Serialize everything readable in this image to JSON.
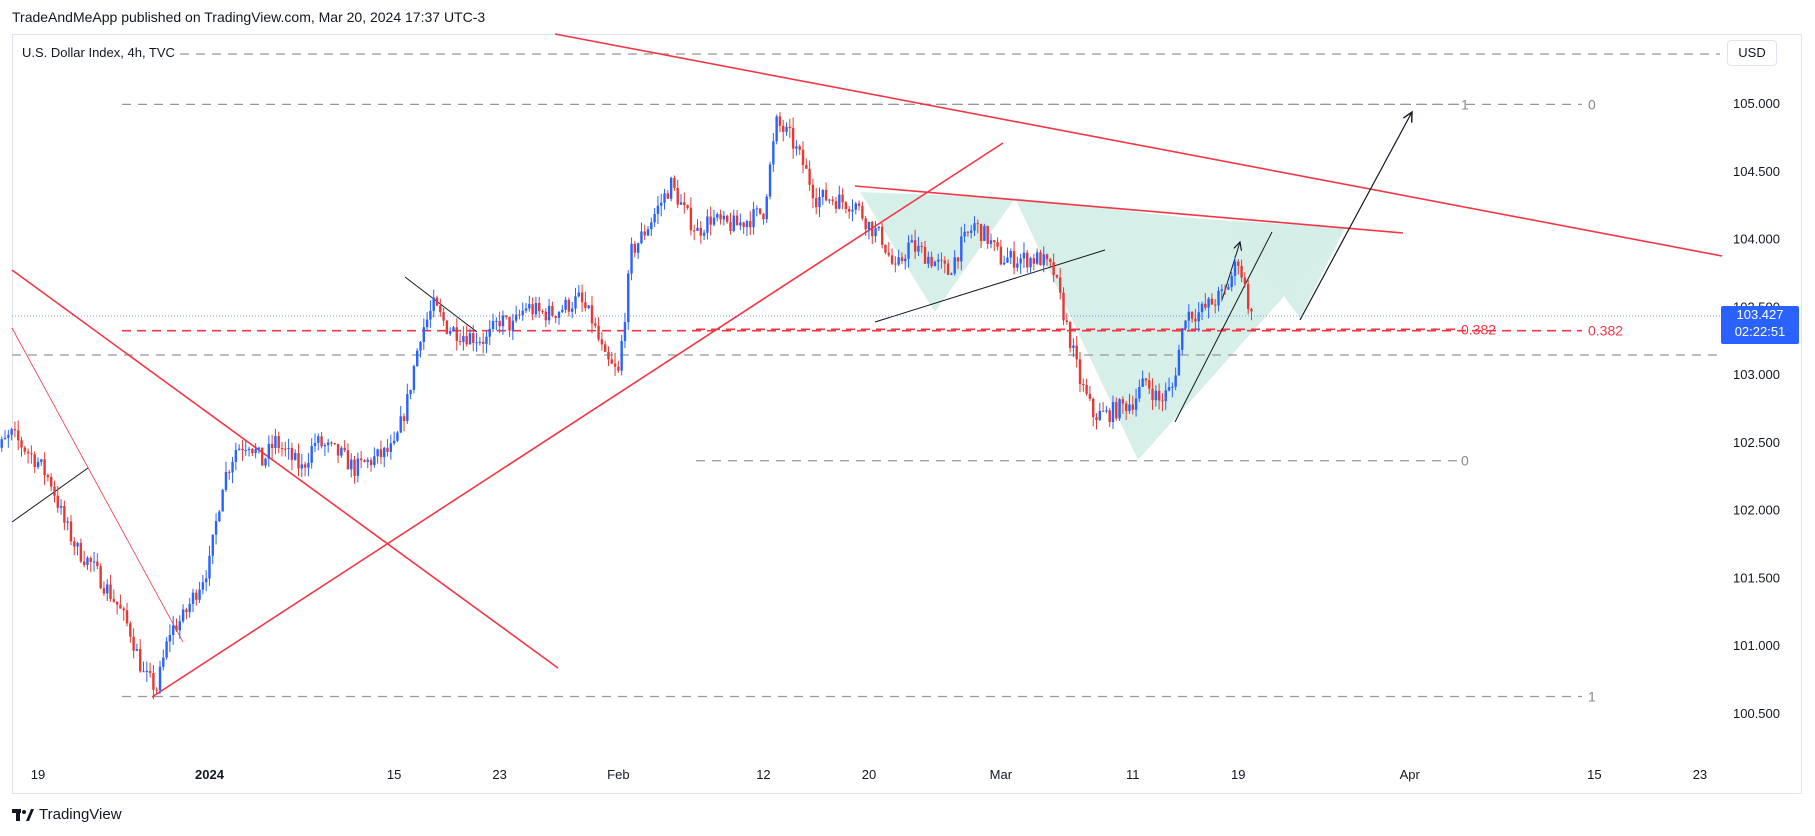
{
  "header": {
    "published": "TradeAndMeApp published on TradingView.com, Mar 20, 2024 17:37 UTC-3"
  },
  "chart_header": {
    "symbol": "U.S. Dollar Index, 4h, TVC",
    "currency": "USD"
  },
  "price_tag": {
    "price": "103.427",
    "countdown": "02:22:51"
  },
  "footer": {
    "brand": "TradingView"
  },
  "colors": {
    "bull": "#2962ff",
    "bear": "#e53935",
    "trend": "#f23645",
    "pattern_fill": "#d5eee8",
    "grid_dash": "#9598a1"
  },
  "chart_data": {
    "type": "candlestick",
    "timeframe": "4h",
    "y_ticks": [
      "105.000",
      "104.500",
      "104.000",
      "103.500",
      "103.000",
      "102.500",
      "102.000",
      "101.500",
      "101.000",
      "100.500"
    ],
    "x_ticks": [
      "19",
      "2024",
      "15",
      "23",
      "Feb",
      "12",
      "20",
      "Mar",
      "11",
      "19",
      "Apr",
      "15",
      "23"
    ],
    "x_tick_dates": [
      "2023-12-19",
      "2024-01-01",
      "2024-01-15",
      "2024-01-23",
      "2024-02-01",
      "2024-02-12",
      "2024-02-20",
      "2024-03-01",
      "2024-03-11",
      "2024-03-19",
      "2024-04-01",
      "2024-04-15",
      "2024-04-23"
    ],
    "y_range": [
      100.2,
      105.45
    ],
    "last_price": 103.427,
    "fib_left": {
      "levels": [
        "1",
        "0.382",
        "0"
      ],
      "prices": [
        100.62,
        103.32,
        104.99
      ]
    },
    "fib_right": {
      "levels": [
        "1",
        "0.382",
        "0"
      ],
      "prices": [
        104.99,
        103.33,
        102.36
      ]
    },
    "path": [
      [
        "2023-12-15",
        102.6
      ],
      [
        "2023-12-16",
        102.45
      ],
      [
        "2023-12-17",
        102.55
      ],
      [
        "2023-12-19",
        102.35
      ],
      [
        "2023-12-20",
        102.2
      ],
      [
        "2023-12-21",
        101.9
      ],
      [
        "2023-12-22",
        101.7
      ],
      [
        "2023-12-23",
        101.6
      ],
      [
        "2023-12-25",
        101.3
      ],
      [
        "2023-12-26",
        101.1
      ],
      [
        "2023-12-27",
        100.78
      ],
      [
        "2023-12-28",
        100.68
      ],
      [
        "2023-12-29",
        101.1
      ],
      [
        "2023-12-30",
        101.2
      ],
      [
        "2024-01-01",
        101.6
      ],
      [
        "2024-01-02",
        102.2
      ],
      [
        "2024-01-03",
        102.45
      ],
      [
        "2024-01-04",
        102.5
      ],
      [
        "2024-01-05",
        102.35
      ],
      [
        "2024-01-06",
        102.5
      ],
      [
        "2024-01-08",
        102.3
      ],
      [
        "2024-01-09",
        102.5
      ],
      [
        "2024-01-10",
        102.45
      ],
      [
        "2024-01-11",
        102.4
      ],
      [
        "2024-01-12",
        102.3
      ],
      [
        "2024-01-13",
        102.35
      ],
      [
        "2024-01-15",
        102.45
      ],
      [
        "2024-01-16",
        102.8
      ],
      [
        "2024-01-17",
        103.3
      ],
      [
        "2024-01-18",
        103.5
      ],
      [
        "2024-01-19",
        103.35
      ],
      [
        "2024-01-20",
        103.3
      ],
      [
        "2024-01-22",
        103.25
      ],
      [
        "2024-01-23",
        103.4
      ],
      [
        "2024-01-24",
        103.35
      ],
      [
        "2024-01-25",
        103.5
      ],
      [
        "2024-01-26",
        103.45
      ],
      [
        "2024-01-27",
        103.45
      ],
      [
        "2024-01-29",
        103.55
      ],
      [
        "2024-01-30",
        103.4
      ],
      [
        "2024-01-31",
        103.1
      ],
      [
        "2024-02-01",
        103.0
      ],
      [
        "2024-02-02",
        103.9
      ],
      [
        "2024-02-03",
        104.05
      ],
      [
        "2024-02-05",
        104.4
      ],
      [
        "2024-02-06",
        104.2
      ],
      [
        "2024-02-07",
        104.05
      ],
      [
        "2024-02-08",
        104.15
      ],
      [
        "2024-02-09",
        104.1
      ],
      [
        "2024-02-10",
        104.1
      ],
      [
        "2024-02-12",
        104.2
      ],
      [
        "2024-02-13",
        104.85
      ],
      [
        "2024-02-14",
        104.75
      ],
      [
        "2024-02-15",
        104.55
      ],
      [
        "2024-02-16",
        104.3
      ],
      [
        "2024-02-17",
        104.3
      ],
      [
        "2024-02-19",
        104.25
      ],
      [
        "2024-02-20",
        104.1
      ],
      [
        "2024-02-21",
        104.0
      ],
      [
        "2024-02-22",
        103.75
      ],
      [
        "2024-02-23",
        103.95
      ],
      [
        "2024-02-24",
        103.9
      ],
      [
        "2024-02-26",
        103.75
      ],
      [
        "2024-02-27",
        103.95
      ],
      [
        "2024-02-28",
        104.1
      ],
      [
        "2024-02-29",
        104.0
      ],
      [
        "2024-03-01",
        103.85
      ],
      [
        "2024-03-02",
        103.85
      ],
      [
        "2024-03-04",
        103.85
      ],
      [
        "2024-03-05",
        103.75
      ],
      [
        "2024-03-06",
        103.35
      ],
      [
        "2024-03-07",
        102.95
      ],
      [
        "2024-03-08",
        102.7
      ],
      [
        "2024-03-09",
        102.7
      ],
      [
        "2024-03-11",
        102.8
      ],
      [
        "2024-03-12",
        102.95
      ],
      [
        "2024-03-13",
        102.8
      ],
      [
        "2024-03-14",
        102.9
      ],
      [
        "2024-03-15",
        103.45
      ],
      [
        "2024-03-16",
        103.45
      ],
      [
        "2024-03-18",
        103.6
      ],
      [
        "2024-03-19",
        103.85
      ],
      [
        "2024-03-20",
        103.427
      ]
    ]
  }
}
